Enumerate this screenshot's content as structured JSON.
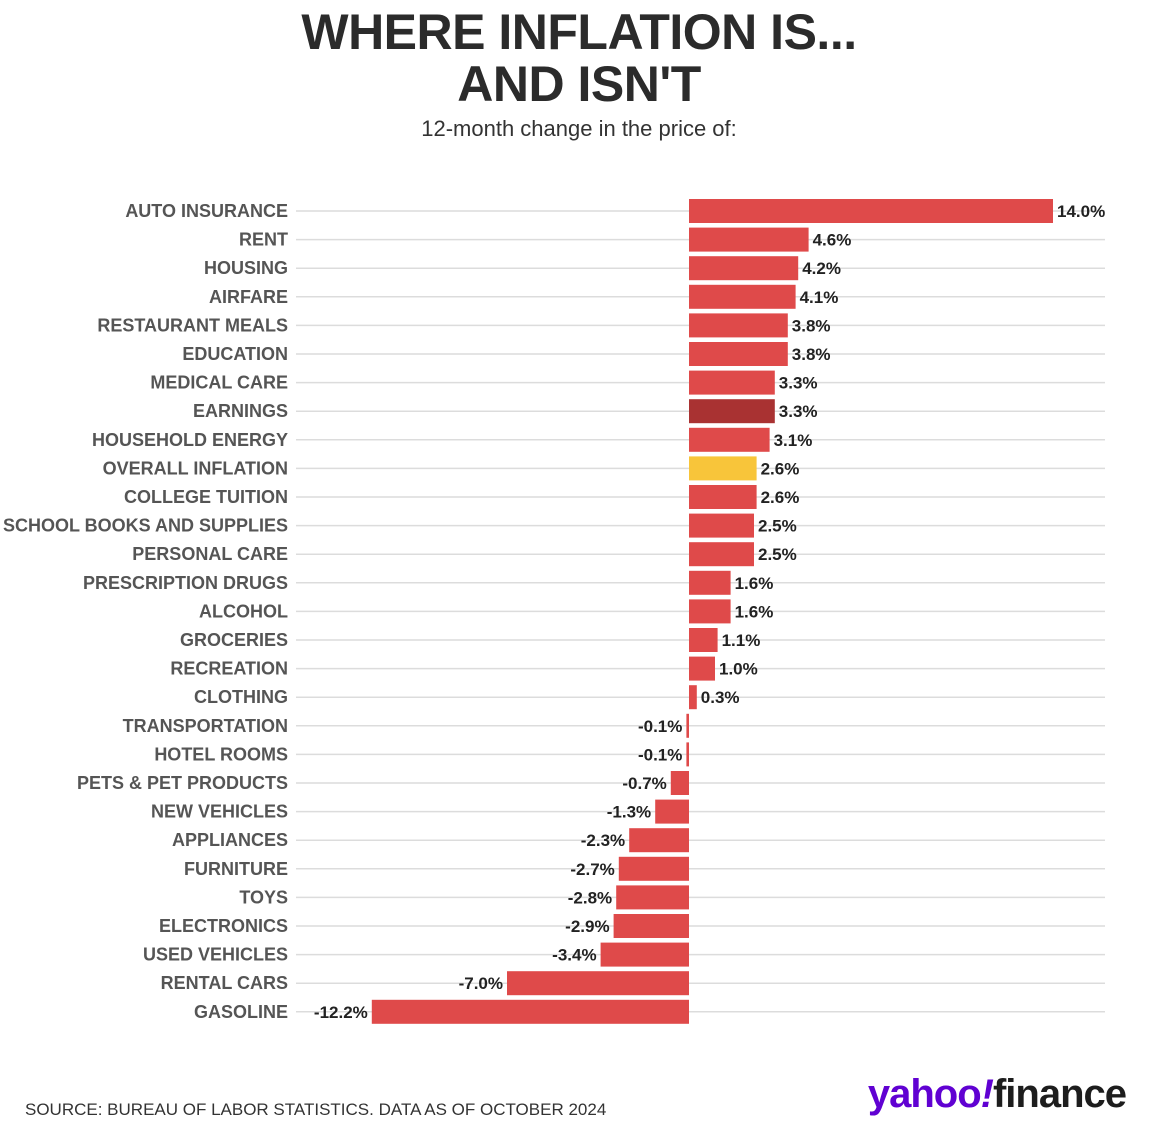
{
  "title_line1": "WHERE INFLATION IS...",
  "title_line2": "AND ISN'T",
  "subtitle": "12-month change in the price of:",
  "source": "SOURCE: BUREAU OF LABOR STATISTICS. DATA AS OF OCTOBER 2024",
  "logo": {
    "brand": "yahoo",
    "bang": "!",
    "product": "finance"
  },
  "colors": {
    "default_bar": "#df4a4a",
    "earnings_bar": "#a93232",
    "overall_inflation_bar": "#f8c53a",
    "gridline": "#dcdcdc"
  },
  "chart_data": {
    "type": "bar",
    "orientation": "horizontal",
    "unit": "%",
    "categories": [
      "AUTO INSURANCE",
      "RENT",
      "HOUSING",
      "AIRFARE",
      "RESTAURANT MEALS",
      "EDUCATION",
      "MEDICAL CARE",
      "EARNINGS",
      "HOUSEHOLD ENERGY",
      "OVERALL INFLATION",
      "COLLEGE TUITION",
      "SCHOOL BOOKS AND SUPPLIES",
      "PERSONAL CARE",
      "PRESCRIPTION DRUGS",
      "ALCOHOL",
      "GROCERIES",
      "RECREATION",
      "CLOTHING",
      "TRANSPORTATION",
      "HOTEL ROOMS",
      "PETS & PET PRODUCTS",
      "NEW VEHICLES",
      "APPLIANCES",
      "FURNITURE",
      "TOYS",
      "ELECTRONICS",
      "USED VEHICLES",
      "RENTAL CARS",
      "GASOLINE"
    ],
    "values": [
      14.0,
      4.6,
      4.2,
      4.1,
      3.8,
      3.8,
      3.3,
      3.3,
      3.1,
      2.6,
      2.6,
      2.5,
      2.5,
      1.6,
      1.6,
      1.1,
      1.0,
      0.3,
      -0.1,
      -0.1,
      -0.7,
      -1.3,
      -2.3,
      -2.7,
      -2.8,
      -2.9,
      -3.4,
      -7.0,
      -12.2
    ],
    "value_labels": [
      "14.0%",
      "4.6%",
      "4.2%",
      "4.1%",
      "3.8%",
      "3.8%",
      "3.3%",
      "3.3%",
      "3.1%",
      "2.6%",
      "2.6%",
      "2.5%",
      "2.5%",
      "1.6%",
      "1.6%",
      "1.1%",
      "1.0%",
      "0.3%",
      "-0.1%",
      "-0.1%",
      "-0.7%",
      "-1.3%",
      "-2.3%",
      "-2.7%",
      "-2.8%",
      "-2.9%",
      "-3.4%",
      "-7.0%",
      "-12.2%"
    ],
    "highlight": {
      "EARNINGS": "earnings_bar",
      "OVERALL INFLATION": "overall_inflation_bar"
    },
    "xlim": [
      -12.2,
      14.0
    ],
    "grid": true,
    "legend": "none"
  }
}
